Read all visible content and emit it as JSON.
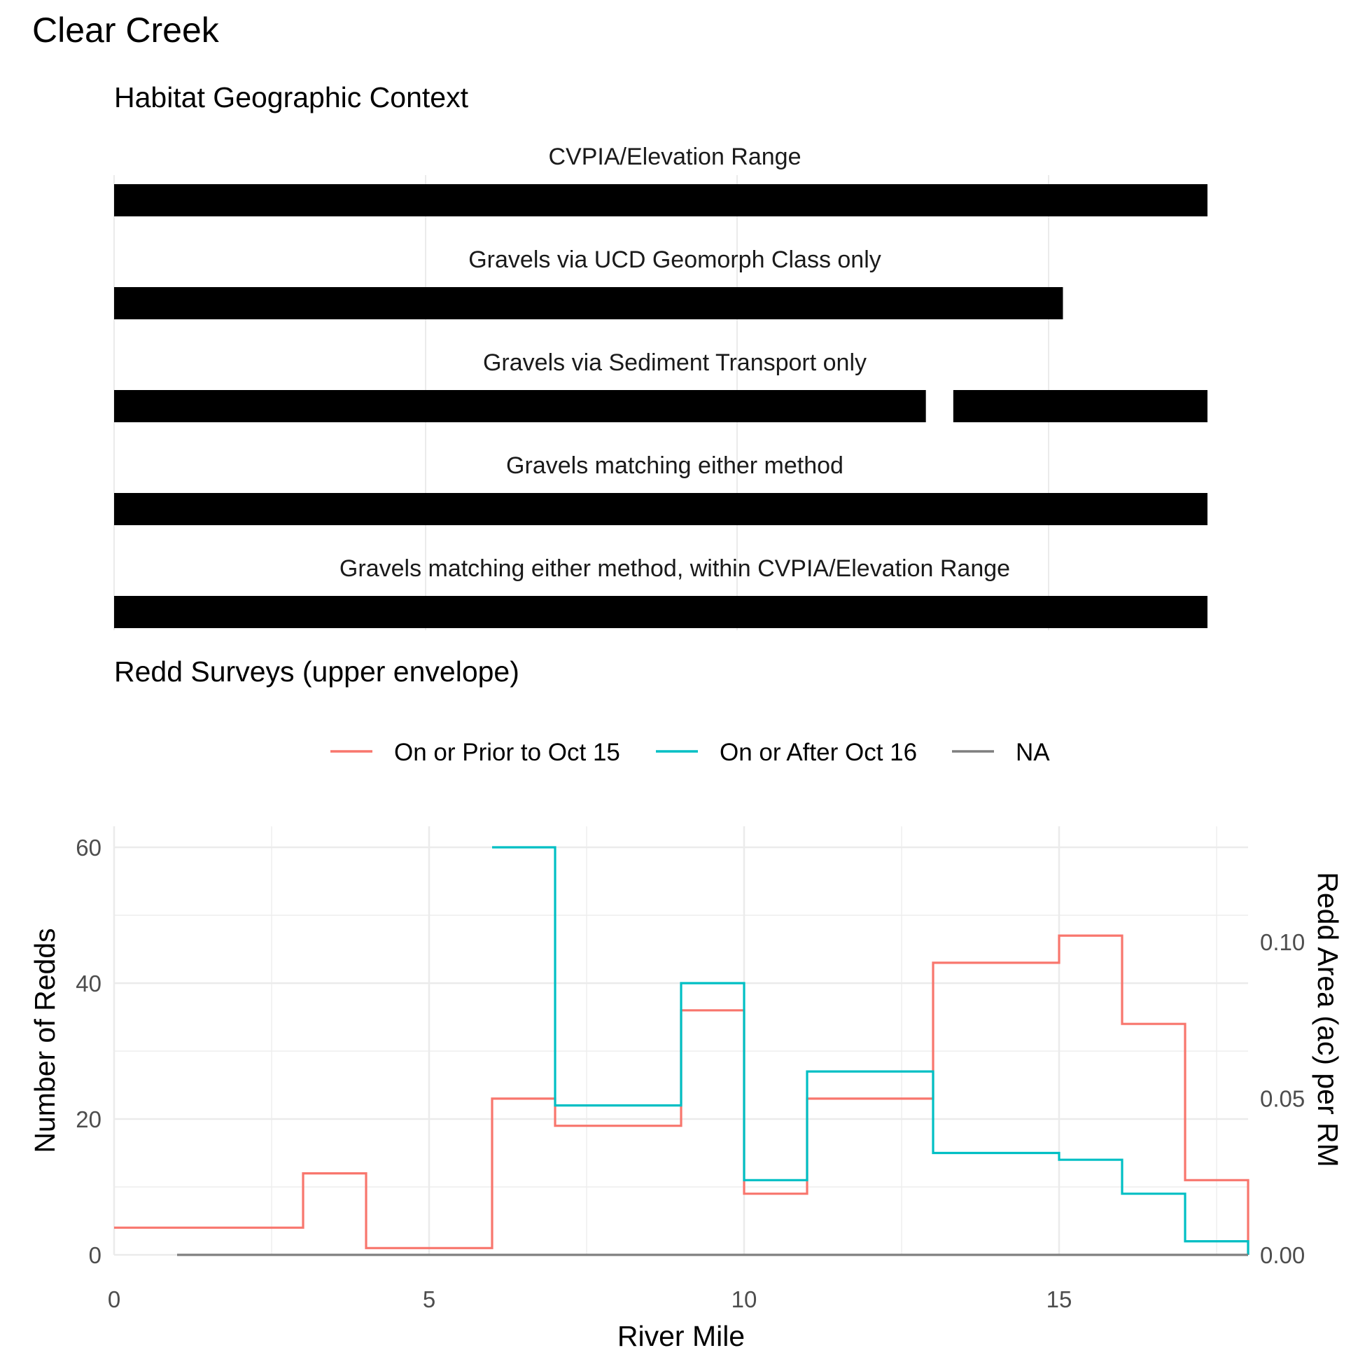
{
  "page": {
    "title": "Clear Creek",
    "habitat_title": "Habitat Geographic Context",
    "redd_title": "Redd Surveys (upper envelope)"
  },
  "chart_data": [
    {
      "type": "bar",
      "title": "Habitat Geographic Context",
      "x_range": [
        0,
        18
      ],
      "grid": true,
      "bar_color": "#000000",
      "tracks": [
        {
          "label": "CVPIA/Elevation Range",
          "segments": [
            [
              0,
              17.55
            ]
          ]
        },
        {
          "label": "Gravels via UCD Geomorph Class only",
          "segments": [
            [
              0,
              15.23
            ]
          ]
        },
        {
          "label": "Gravels via Sediment Transport only",
          "segments": [
            [
              0,
              13.03
            ],
            [
              13.47,
              17.55
            ]
          ]
        },
        {
          "label": "Gravels matching either method",
          "segments": [
            [
              0,
              17.55
            ]
          ]
        },
        {
          "label": "Gravels matching either method, within CVPIA/Elevation Range",
          "segments": [
            [
              0,
              17.55
            ]
          ]
        }
      ]
    },
    {
      "type": "line",
      "title": "Redd Surveys (upper envelope)",
      "xlabel": "River Mile",
      "ylabel": "Number of Redds",
      "y2label": "Redd Area (ac) per RM",
      "xlim": [
        0,
        18
      ],
      "ylim": [
        0,
        60
      ],
      "x_ticks": [
        0,
        5,
        10,
        15
      ],
      "y_ticks": [
        0,
        20,
        40,
        60
      ],
      "y2_ticks": [
        "0.00",
        "0.05",
        "0.10"
      ],
      "y2_tick_values": [
        0,
        0.05,
        0.1
      ],
      "y2_per_y": 0.00217,
      "legend_position": "top",
      "step": "hv",
      "grid": true,
      "series": [
        {
          "name": "On or Prior to Oct 15",
          "color": "#F8766D",
          "points": [
            [
              0,
              4
            ],
            [
              1,
              4
            ],
            [
              2,
              4
            ],
            [
              3,
              12
            ],
            [
              4,
              1
            ],
            [
              5,
              1
            ],
            [
              6,
              23
            ],
            [
              7,
              19
            ],
            [
              8,
              19
            ],
            [
              9,
              36
            ],
            [
              10,
              9
            ],
            [
              11,
              23
            ],
            [
              12,
              23
            ],
            [
              13,
              43
            ],
            [
              14,
              43
            ],
            [
              15,
              47
            ],
            [
              16,
              34
            ],
            [
              17,
              11
            ],
            [
              18,
              0
            ]
          ]
        },
        {
          "name": "On or After Oct 16",
          "color": "#00BFC4",
          "points": [
            [
              6,
              60
            ],
            [
              7,
              22
            ],
            [
              8,
              22
            ],
            [
              9,
              40
            ],
            [
              10,
              11
            ],
            [
              11,
              27
            ],
            [
              12,
              27
            ],
            [
              13,
              15
            ],
            [
              14,
              15
            ],
            [
              15,
              14
            ],
            [
              16,
              9
            ],
            [
              17,
              2
            ],
            [
              18,
              0
            ]
          ]
        },
        {
          "name": "NA",
          "color": "#7F7F7F",
          "points": [
            [
              1,
              0
            ],
            [
              18,
              0
            ]
          ]
        }
      ]
    }
  ]
}
